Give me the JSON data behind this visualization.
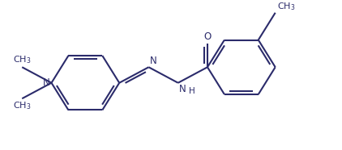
{
  "background_color": "#ffffff",
  "line_color": "#2b2b6b",
  "line_width": 1.5,
  "font_size": 8.5,
  "doff": 0.006,
  "figsize": [
    4.22,
    1.86
  ],
  "dpi": 100,
  "xlim": [
    0,
    4.22
  ],
  "ylim": [
    0,
    1.86
  ]
}
